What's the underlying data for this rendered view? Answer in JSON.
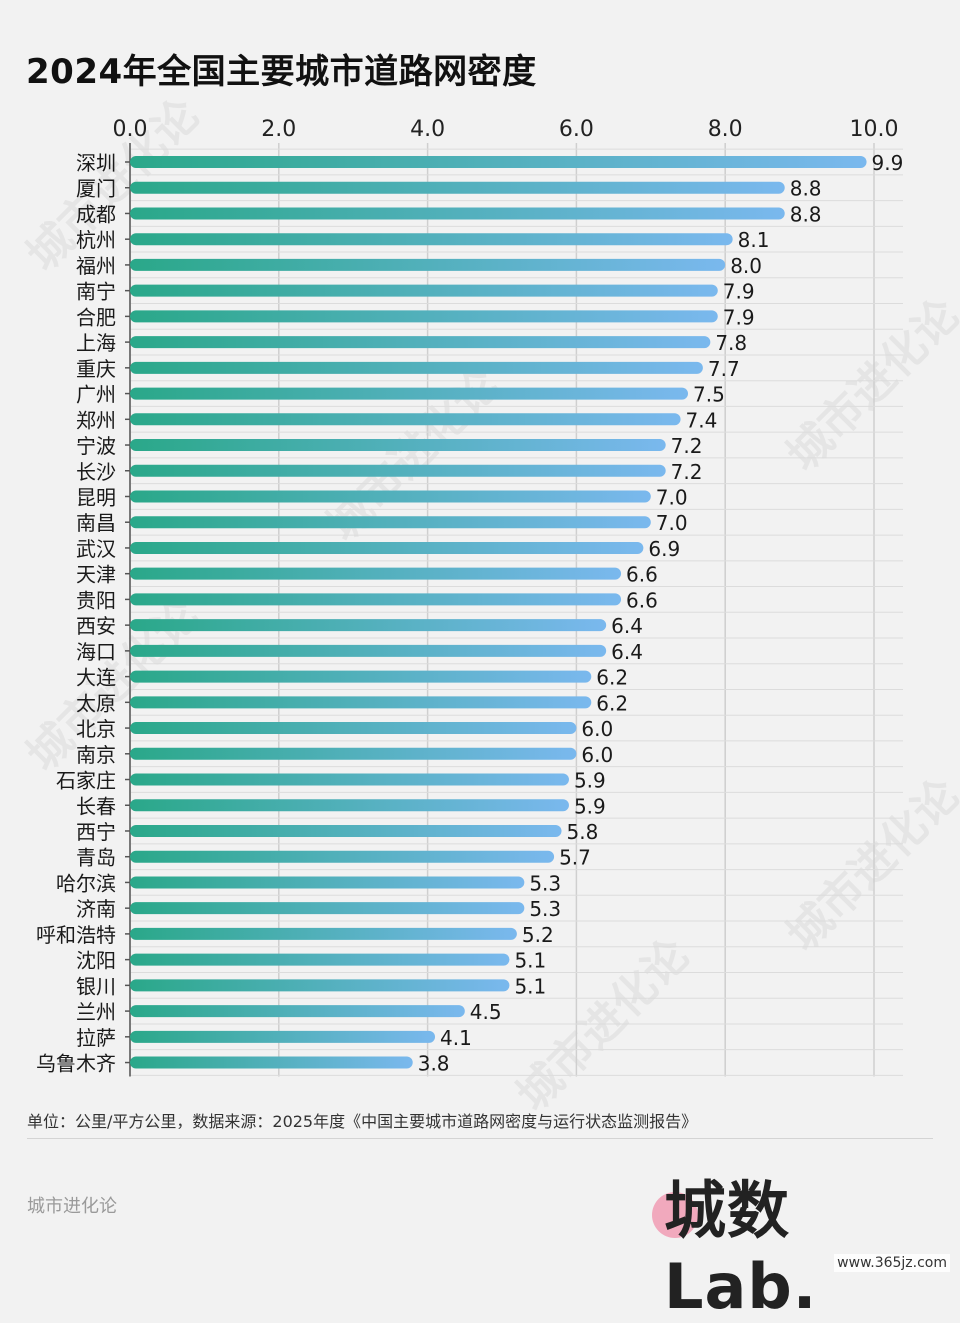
{
  "title": "2024年全国主要城市道路网密度",
  "footnote": "单位：公里/平方公里，数据来源：2025年度《中国主要城市道路网密度与运行状态监测报告》",
  "brand": {
    "name": "城市进化论",
    "logo_text": "城数Lab.",
    "watermark_cn": "城市进化论",
    "site": "www.365jz.com"
  },
  "colors": {
    "bar_start": "#2aa889",
    "bar_end": "#7ab8ee",
    "grid": "#cfcfcf",
    "axis": "#555555"
  },
  "chart_data": {
    "type": "bar",
    "orientation": "horizontal",
    "title": "2024年全国主要城市道路网密度",
    "xlim": [
      0,
      10
    ],
    "x_ticks": [
      "0.0",
      "2.0",
      "4.0",
      "6.0",
      "8.0",
      "10.0"
    ],
    "x_axis_position": "top",
    "grid": true,
    "categories": [
      "深圳",
      "厦门",
      "成都",
      "杭州",
      "福州",
      "南宁",
      "合肥",
      "上海",
      "重庆",
      "广州",
      "郑州",
      "宁波",
      "长沙",
      "昆明",
      "南昌",
      "武汉",
      "天津",
      "贵阳",
      "西安",
      "海口",
      "大连",
      "太原",
      "北京",
      "南京",
      "石家庄",
      "长春",
      "西宁",
      "青岛",
      "哈尔滨",
      "济南",
      "呼和浩特",
      "沈阳",
      "银川",
      "兰州",
      "拉萨",
      "乌鲁木齐"
    ],
    "values": [
      9.9,
      8.8,
      8.8,
      8.1,
      8.0,
      7.9,
      7.9,
      7.8,
      7.7,
      7.5,
      7.4,
      7.2,
      7.2,
      7.0,
      7.0,
      6.9,
      6.6,
      6.6,
      6.4,
      6.4,
      6.2,
      6.2,
      6.0,
      6.0,
      5.9,
      5.9,
      5.8,
      5.7,
      5.3,
      5.3,
      5.2,
      5.1,
      5.1,
      4.5,
      4.1,
      3.8
    ]
  }
}
